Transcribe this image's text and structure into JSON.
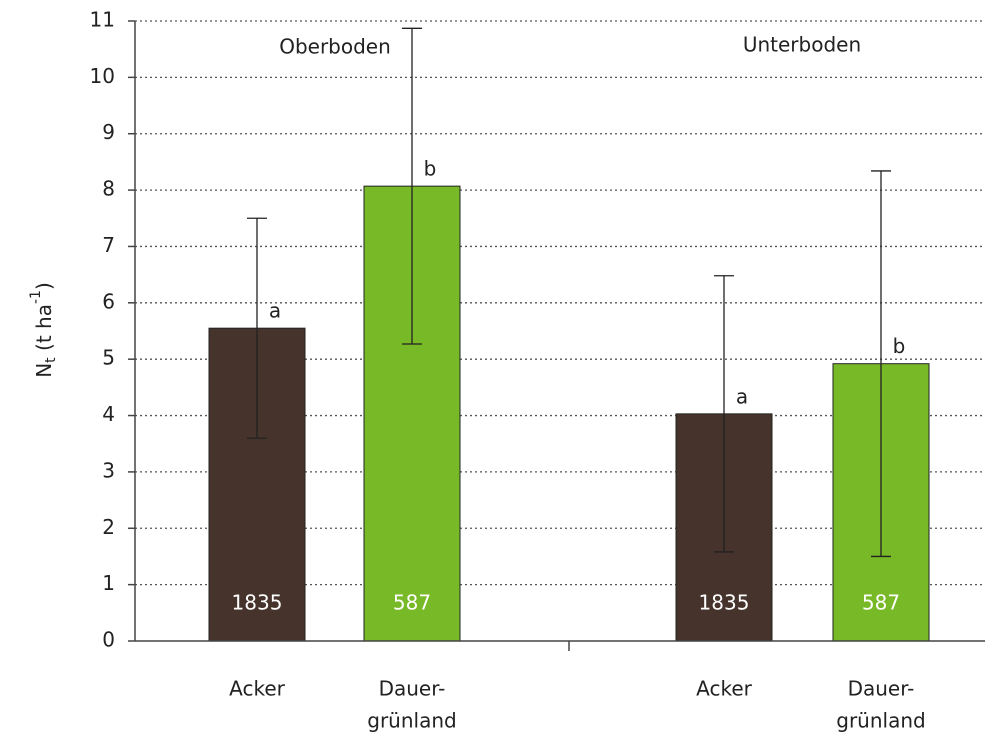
{
  "chart_data": {
    "type": "bar",
    "y_label_parts": [
      "N",
      "t",
      " (t ha",
      "-1",
      ")"
    ],
    "groups": [
      "Oberboden",
      "Unterboden"
    ],
    "categories": [
      [
        "Acker"
      ],
      [
        "Dauer-",
        "grünland"
      ],
      [
        "Acker"
      ],
      [
        "Dauer-",
        "grünland"
      ]
    ],
    "values": [
      5.55,
      8.07,
      4.03,
      4.92
    ],
    "errors": [
      1.95,
      2.8,
      2.45,
      3.42
    ],
    "colors": [
      "#46342c",
      "#78b928",
      "#46342c",
      "#78b928"
    ],
    "letters": [
      "a",
      "b",
      "a",
      "b"
    ],
    "n": [
      1835,
      587,
      1835,
      587
    ],
    "ylim": [
      0,
      11
    ],
    "yticks": [
      0,
      1,
      2,
      3,
      4,
      5,
      6,
      7,
      8,
      9,
      10,
      11
    ],
    "grid": true
  }
}
